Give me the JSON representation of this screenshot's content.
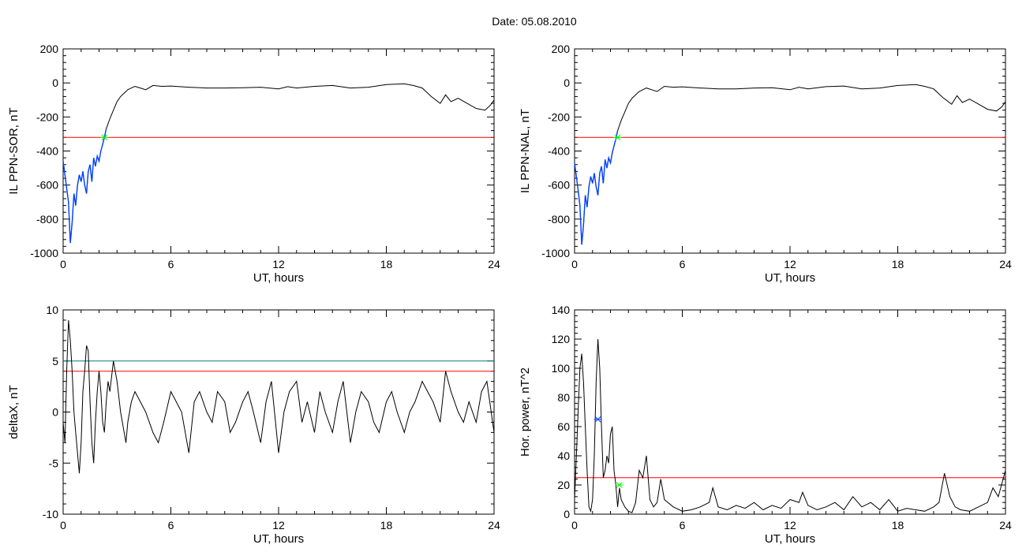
{
  "header": {
    "title": "Date:  05.08.2010"
  },
  "chart_data": [
    {
      "type": "line",
      "xlabel": "UT, hours",
      "ylabel": "IL PPN-SOR, nT",
      "xlim": [
        0,
        24
      ],
      "ylim": [
        -1000,
        200
      ],
      "xticks": [
        0,
        6,
        12,
        18,
        24
      ],
      "yticks": [
        -1000,
        -800,
        -600,
        -400,
        -200,
        0,
        200
      ],
      "colors": {
        "main": "#000000",
        "highlight": "#0040ff",
        "threshold": "#ff0000",
        "marker": "#00ff00"
      },
      "threshold": -320,
      "marker": {
        "x": 2.3,
        "y": -320
      },
      "highlight_range": [
        0,
        2.4
      ],
      "series": [
        {
          "x": [
            0,
            0.1,
            0.2,
            0.3,
            0.4,
            0.5,
            0.6,
            0.7,
            0.8,
            0.9,
            1.0,
            1.1,
            1.2,
            1.3,
            1.4,
            1.5,
            1.6,
            1.7,
            1.8,
            1.9,
            2.0,
            2.1,
            2.2,
            2.3,
            2.4,
            2.6,
            2.8,
            3.0,
            3.2,
            3.4,
            3.6,
            3.8,
            4.0,
            4.3,
            4.6,
            5.0,
            5.5,
            6,
            7,
            8,
            9,
            10,
            11,
            12,
            12.5,
            13,
            14,
            15,
            16,
            17,
            18,
            19,
            19.5,
            20,
            20.5,
            21,
            21.3,
            21.6,
            22,
            22.5,
            23,
            23.5,
            23.8,
            24
          ],
          "y": [
            -460,
            -540,
            -620,
            -700,
            -940,
            -820,
            -650,
            -720,
            -600,
            -540,
            -580,
            -520,
            -600,
            -650,
            -520,
            -480,
            -580,
            -440,
            -490,
            -430,
            -460,
            -400,
            -360,
            -320,
            -270,
            -210,
            -160,
            -110,
            -80,
            -60,
            -40,
            -30,
            -20,
            -30,
            -40,
            -15,
            -20,
            -18,
            -25,
            -30,
            -30,
            -28,
            -25,
            -35,
            -22,
            -30,
            -20,
            -15,
            -30,
            -25,
            -10,
            -5,
            -15,
            -30,
            -80,
            -120,
            -70,
            -110,
            -90,
            -120,
            -150,
            -160,
            -130,
            -100
          ]
        }
      ]
    },
    {
      "type": "line",
      "xlabel": "UT, hours",
      "ylabel": "IL PPN-NAL, nT",
      "xlim": [
        0,
        24
      ],
      "ylim": [
        -1000,
        200
      ],
      "xticks": [
        0,
        6,
        12,
        18,
        24
      ],
      "yticks": [
        -1000,
        -800,
        -600,
        -400,
        -200,
        0,
        200
      ],
      "colors": {
        "main": "#000000",
        "highlight": "#0040ff",
        "threshold": "#ff0000",
        "marker": "#00ff00"
      },
      "threshold": -320,
      "marker": {
        "x": 2.4,
        "y": -320
      },
      "highlight_range": [
        0,
        2.4
      ],
      "series": [
        {
          "x": [
            0,
            0.1,
            0.2,
            0.3,
            0.4,
            0.5,
            0.6,
            0.7,
            0.8,
            0.9,
            1.0,
            1.1,
            1.2,
            1.3,
            1.4,
            1.5,
            1.6,
            1.7,
            1.8,
            1.9,
            2.0,
            2.1,
            2.2,
            2.3,
            2.4,
            2.6,
            2.8,
            3.0,
            3.2,
            3.4,
            3.6,
            3.8,
            4.0,
            4.3,
            4.6,
            5.0,
            5.5,
            6,
            7,
            8,
            9,
            10,
            11,
            12,
            12.5,
            13,
            14,
            15,
            16,
            17,
            18,
            19,
            19.5,
            20,
            20.5,
            21,
            21.3,
            21.6,
            22,
            22.5,
            23,
            23.5,
            23.8,
            24
          ],
          "y": [
            -470,
            -550,
            -630,
            -720,
            -950,
            -830,
            -660,
            -730,
            -610,
            -550,
            -590,
            -530,
            -610,
            -660,
            -530,
            -490,
            -590,
            -450,
            -500,
            -440,
            -470,
            -410,
            -370,
            -330,
            -280,
            -220,
            -170,
            -120,
            -90,
            -70,
            -50,
            -40,
            -30,
            -40,
            -50,
            -20,
            -25,
            -23,
            -30,
            -35,
            -35,
            -30,
            -28,
            -40,
            -25,
            -35,
            -22,
            -18,
            -35,
            -30,
            -15,
            -10,
            -20,
            -35,
            -85,
            -125,
            -75,
            -115,
            -95,
            -125,
            -155,
            -165,
            -140,
            -110
          ]
        }
      ]
    },
    {
      "type": "line",
      "xlabel": "UT, hours",
      "ylabel": "deltaX, nT",
      "xlim": [
        0,
        24
      ],
      "ylim": [
        -10,
        10
      ],
      "xticks": [
        0,
        6,
        12,
        18,
        24
      ],
      "yticks": [
        -10,
        -5,
        0,
        5,
        10
      ],
      "colors": {
        "main": "#000000",
        "threshold": "#ff0000",
        "threshold2": "#008080"
      },
      "threshold": 4,
      "threshold2": 5,
      "series": [
        {
          "x": [
            0,
            0.1,
            0.2,
            0.3,
            0.4,
            0.5,
            0.6,
            0.7,
            0.8,
            0.9,
            1.0,
            1.1,
            1.2,
            1.3,
            1.4,
            1.5,
            1.6,
            1.7,
            1.8,
            1.9,
            2.0,
            2.1,
            2.2,
            2.3,
            2.4,
            2.5,
            2.6,
            2.8,
            3.0,
            3.2,
            3.4,
            3.5,
            3.6,
            3.8,
            4.0,
            4.3,
            4.6,
            5.0,
            5.3,
            5.6,
            6.0,
            6.3,
            6.6,
            7.0,
            7.3,
            7.6,
            8.0,
            8.3,
            8.6,
            9.0,
            9.3,
            9.6,
            10.0,
            10.3,
            10.6,
            11.0,
            11.3,
            11.6,
            12.0,
            12.3,
            12.6,
            13.0,
            13.3,
            13.6,
            14.0,
            14.3,
            14.6,
            15.0,
            15.3,
            15.6,
            16.0,
            16.3,
            16.6,
            17.0,
            17.3,
            17.6,
            18.0,
            18.3,
            18.6,
            19.0,
            19.3,
            19.6,
            20.0,
            20.3,
            20.6,
            21.0,
            21.3,
            21.6,
            22.0,
            22.3,
            22.6,
            23.0,
            23.3,
            23.6,
            24
          ],
          "y": [
            -1,
            -3,
            4,
            9,
            7,
            4,
            0,
            -2,
            -4,
            -6,
            -3,
            2,
            4,
            6.5,
            6,
            1,
            -3,
            -5,
            -1,
            2,
            4,
            2,
            -1,
            -2,
            1,
            3,
            2,
            5,
            3,
            0,
            -2,
            -3,
            -1,
            1,
            2,
            1,
            0,
            -2,
            -3,
            -1,
            2,
            1,
            0,
            -4,
            1,
            2,
            0,
            -1,
            2,
            1,
            -2,
            -1,
            1,
            2,
            0,
            -3,
            1,
            3,
            -4,
            0,
            2,
            3,
            -1,
            1,
            -2,
            2,
            0,
            -2,
            1,
            3,
            -3,
            0,
            2,
            1,
            -1,
            -2,
            1,
            2,
            0,
            -2,
            0,
            1,
            3,
            2,
            1,
            -1,
            4,
            2,
            0,
            -1,
            1,
            -1,
            2,
            3,
            -2
          ]
        }
      ]
    },
    {
      "type": "line",
      "xlabel": "UT, hours",
      "ylabel": "Hor. power, nT^2",
      "xlim": [
        0,
        24
      ],
      "ylim": [
        0,
        140
      ],
      "xticks": [
        0,
        6,
        12,
        18,
        24
      ],
      "yticks": [
        0,
        20,
        40,
        60,
        80,
        100,
        120,
        140
      ],
      "colors": {
        "main": "#000000",
        "threshold": "#ff0000",
        "marker": "#0040ff",
        "marker2": "#00ff00"
      },
      "threshold": 25,
      "marker": {
        "x": 1.3,
        "y": 65
      },
      "marker2": {
        "x": 2.5,
        "y": 20
      },
      "series": [
        {
          "x": [
            0,
            0.1,
            0.2,
            0.3,
            0.4,
            0.5,
            0.6,
            0.7,
            0.8,
            0.9,
            1.0,
            1.1,
            1.2,
            1.3,
            1.4,
            1.5,
            1.6,
            1.7,
            1.8,
            1.9,
            2.0,
            2.1,
            2.2,
            2.3,
            2.4,
            2.5,
            2.6,
            2.8,
            3.0,
            3.2,
            3.4,
            3.6,
            3.8,
            4.0,
            4.2,
            4.4,
            4.6,
            4.8,
            5.0,
            5.5,
            6,
            6.5,
            7,
            7.5,
            7.7,
            8,
            8.5,
            9,
            9.5,
            10,
            10.5,
            11,
            11.5,
            12,
            12.5,
            12.7,
            13,
            13.5,
            14,
            14.5,
            15,
            15.5,
            16,
            16.5,
            17,
            17.5,
            18,
            18.5,
            19,
            19.5,
            20,
            20.3,
            20.6,
            20.9,
            21.2,
            21.5,
            22,
            22.5,
            23,
            23.3,
            23.6,
            24
          ],
          "y": [
            10,
            40,
            70,
            100,
            110,
            90,
            60,
            30,
            5,
            2,
            10,
            40,
            90,
            120,
            100,
            60,
            25,
            30,
            40,
            35,
            55,
            60,
            30,
            20,
            5,
            18,
            10,
            5,
            2,
            1,
            8,
            30,
            25,
            40,
            10,
            5,
            8,
            24,
            10,
            5,
            2,
            3,
            5,
            8,
            18,
            5,
            3,
            6,
            4,
            8,
            3,
            6,
            4,
            10,
            8,
            15,
            6,
            3,
            5,
            8,
            3,
            12,
            5,
            8,
            3,
            10,
            2,
            4,
            3,
            2,
            5,
            8,
            28,
            12,
            5,
            3,
            2,
            5,
            8,
            18,
            12,
            30
          ]
        }
      ]
    }
  ]
}
